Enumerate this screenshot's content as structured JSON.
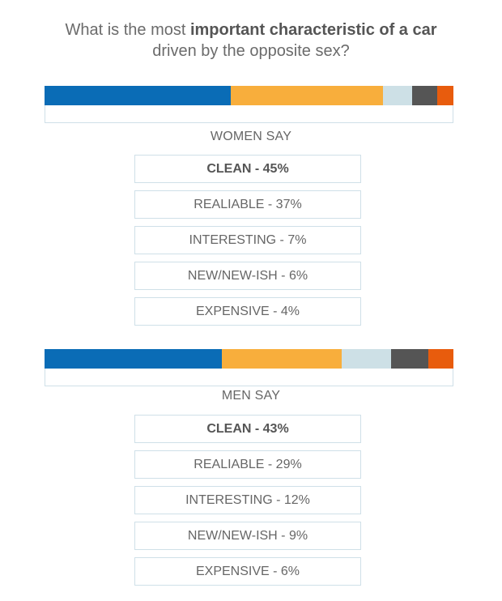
{
  "title": {
    "pre": "What is the most ",
    "bold": "important characteristic of a car",
    "line2": "driven by the opposite sex?"
  },
  "colors": {
    "clean": "#0a6cb6",
    "realiable": "#f8ae3c",
    "interesting": "#cde0e6",
    "new": "#555555",
    "expensive": "#e85c0d",
    "box_border": "#cfe0e8"
  },
  "chart_data": [
    {
      "type": "bar",
      "orientation": "horizontal-stacked",
      "group": "WOMEN  SAY",
      "categories": [
        "CLEAN",
        "REALIABLE",
        "INTERESTING",
        "NEW/NEW-ISH",
        "EXPENSIVE"
      ],
      "values": [
        45,
        37,
        7,
        6,
        4
      ],
      "labels": [
        "CLEAN - 45%",
        "REALIABLE - 37%",
        "INTERESTING - 7%",
        "NEW/NEW-ISH - 6%",
        "EXPENSIVE - 4%"
      ]
    },
    {
      "type": "bar",
      "orientation": "horizontal-stacked",
      "group": "MEN SAY",
      "categories": [
        "CLEAN",
        "REALIABLE",
        "INTERESTING",
        "NEW/NEW-ISH",
        "EXPENSIVE"
      ],
      "values": [
        43,
        29,
        12,
        9,
        6
      ],
      "labels": [
        "CLEAN - 43%",
        "REALIABLE - 29%",
        "INTERESTING - 12%",
        "NEW/NEW-ISH - 9%",
        "EXPENSIVE - 6%"
      ]
    }
  ]
}
